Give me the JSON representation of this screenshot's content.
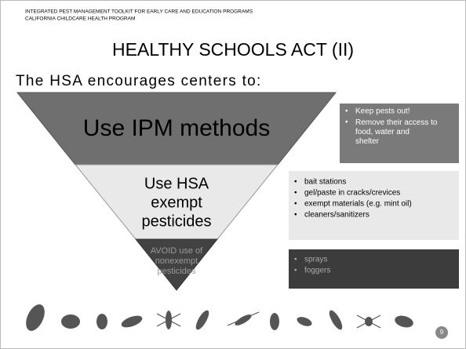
{
  "header": {
    "lines": [
      "INTEGRATED PEST MANAGEMENT TOOLKIT FOR EARLY CARE AND EDUCATION PROGRAMS",
      "CALIFORNIA CHILDCARE HEALTH PROGRAM"
    ]
  },
  "title": "HEALTHY SCHOOLS ACT (II)",
  "subtitle": "The HSA encourages centers to:",
  "tiers": [
    {
      "label": [
        "Use IPM methods"
      ],
      "bullets": [
        "Keep pests out!",
        "Remove their access to food, water and shelter"
      ]
    },
    {
      "label": [
        "Use HSA",
        "exempt",
        "pesticides"
      ],
      "bullets": [
        "bait stations",
        "gel/paste in cracks/crevices",
        "exempt materials (e.g. mint oil)",
        "cleaners/sanitizers"
      ]
    },
    {
      "label": [
        "AVOID use of",
        "nonexempt",
        "pesticides"
      ],
      "bullets": [
        "sprays",
        "foggers"
      ]
    }
  ],
  "page_number": 9
}
